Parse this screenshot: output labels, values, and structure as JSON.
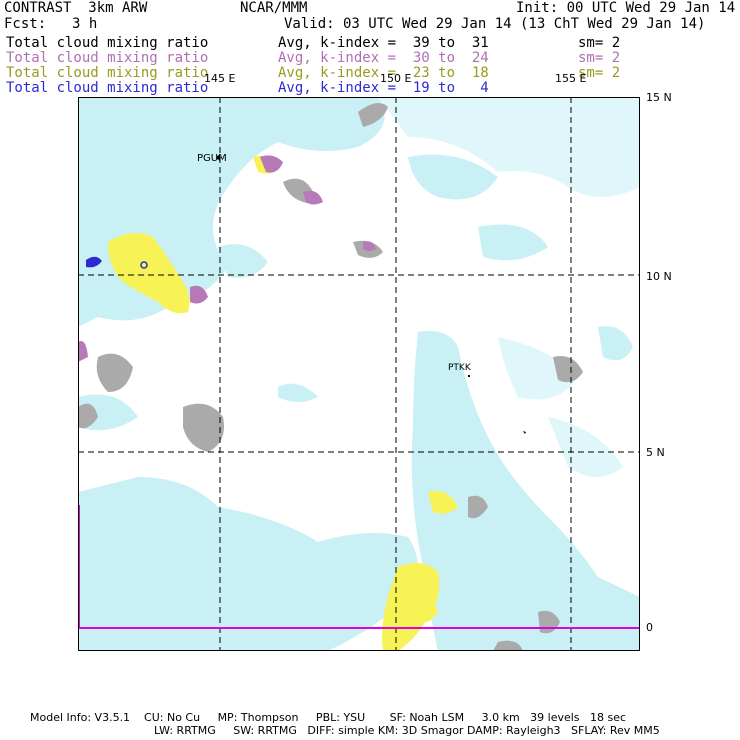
{
  "header": {
    "model": "CONTRAST  3km ARW",
    "org": "NCAR/MMM",
    "init": "Init: 00 UTC Wed 29 Jan 14",
    "fcst_label": "Fcst:",
    "fcst_value": "3 h",
    "valid": "Valid: 03 UTC Wed 29 Jan 14 (13 ChT Wed 29 Jan 14)"
  },
  "legend": [
    {
      "field": "Total cloud mixing ratio",
      "range": "Avg, k-index =  39 to  31",
      "sm": "sm= 2",
      "color": "#000000"
    },
    {
      "field": "Total cloud mixing ratio",
      "range": "Avg, k-index =  30 to  24",
      "sm": "sm= 2",
      "color": "#b06fb4"
    },
    {
      "field": "Total cloud mixing ratio",
      "range": "Avg, k-index =  23 to  18",
      "sm": "sm= 2",
      "color": "#9a9a1e"
    },
    {
      "field": "Total cloud mixing ratio",
      "range": "Avg, k-index =  19 to   4",
      "sm": "",
      "color": "#2b2bd1"
    }
  ],
  "map": {
    "lon_labels": [
      "145 E",
      "150 E",
      "155 E"
    ],
    "lat_labels": [
      "15 N",
      "10 N",
      "5 N",
      "0"
    ],
    "stations": [
      "PGUM",
      "PTKK"
    ],
    "colors": {
      "light_cyan": "#c8f0f5",
      "pale_cyan": "#dff7fa",
      "yellow": "#f7f356",
      "purple": "#b879b9",
      "gray": "#aaaaaa",
      "blue": "#2b2bd1",
      "magenta": "#e000e0"
    }
  },
  "footer": {
    "line1": "Model Info: V3.5.1    CU: No Cu     MP: Thompson     PBL: YSU       SF: Noah LSM     3.0 km   39 levels   18 sec",
    "line2": "LW: RRTMG     SW: RRTMG   DIFF: simple KM: 3D Smagor DAMP: Rayleigh3   SFLAY: Rev MM5"
  }
}
